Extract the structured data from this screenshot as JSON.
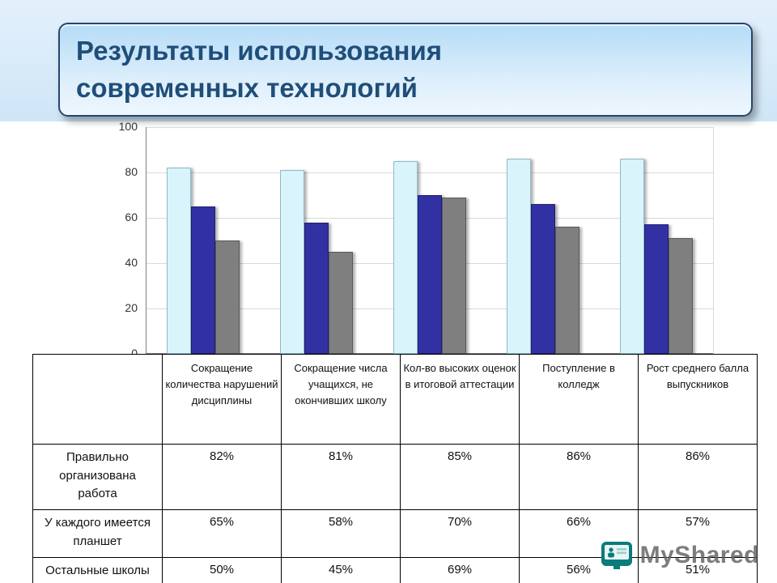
{
  "slide": {
    "title_line1": "Результаты использования",
    "title_line2": "современных технологий"
  },
  "chart_data": {
    "type": "bar",
    "title": "Результаты использования современных технологий",
    "categories": [
      "Сокращение количества нарушений дисциплины",
      "Сокращение числа учащихся, не окончивших школу",
      "Кол-во высоких оценок в итоговой аттестации",
      "Поступление в колледж",
      "Рост среднего балла выпускников"
    ],
    "series": [
      {
        "name": "Правильно организована работа",
        "color": "#d9f4fb",
        "border": "#8fb9c9",
        "values": [
          82,
          81,
          85,
          86,
          86
        ]
      },
      {
        "name": "У каждого имеется планшет",
        "color": "#3231a3",
        "border": "#1f1e6e",
        "values": [
          65,
          58,
          70,
          66,
          57
        ]
      },
      {
        "name": "Остальные школы",
        "color": "#7f7f7f",
        "border": "#595959",
        "values": [
          50,
          45,
          69,
          56,
          51
        ]
      }
    ],
    "xlabel": "",
    "ylabel": "",
    "ylim": [
      0,
      100
    ],
    "yticks": [
      0,
      20,
      40,
      60,
      80,
      100
    ],
    "grid": true,
    "legend_position": "none"
  },
  "table": {
    "row_labels": [
      "Правильно организована работа",
      "У каждого имеется планшет",
      "Остальные школы"
    ],
    "rows": [
      [
        "82%",
        "81%",
        "85%",
        "86%",
        "86%"
      ],
      [
        "65%",
        "58%",
        "70%",
        "66%",
        "57%"
      ],
      [
        "50%",
        "45%",
        "69%",
        "56%",
        "51%"
      ]
    ]
  },
  "watermark": {
    "text": "MyShared",
    "icon": "myshared-logo",
    "color": "#0c7b7b"
  }
}
